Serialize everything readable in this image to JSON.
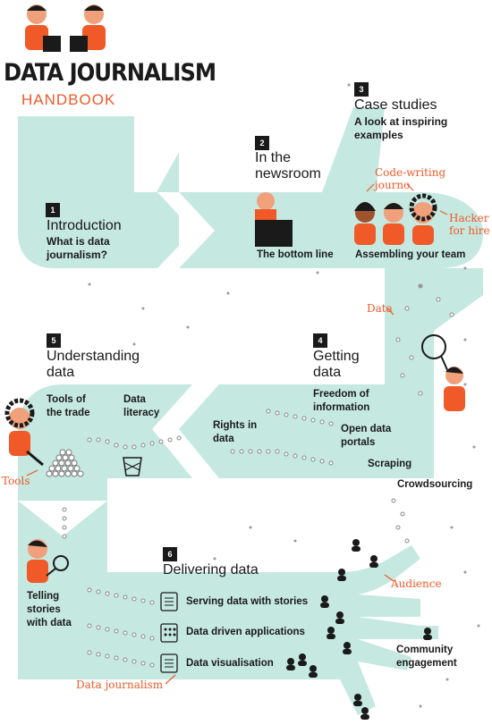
{
  "header": {
    "title": "DATA JOURNALISM",
    "subtitle": "HANDBOOK"
  },
  "chapters": [
    {
      "num": "1",
      "title": "Introduction",
      "subtitle": "What is data journalism?"
    },
    {
      "num": "2",
      "title": "In the newsroom",
      "subtitle": ""
    },
    {
      "num": "3",
      "title": "Case studies",
      "subtitle": "A look at inspiring examples"
    },
    {
      "num": "4",
      "title": "Getting data",
      "subtitle": ""
    },
    {
      "num": "5",
      "title": "Understanding data",
      "subtitle": ""
    },
    {
      "num": "6",
      "title": "Delivering data",
      "subtitle": ""
    }
  ],
  "labels": {
    "bottom_line": "The bottom line",
    "assembling": "Assembling your team",
    "freedom": "Freedom of information",
    "open_data": "Open data portals",
    "scraping": "Scraping",
    "crowdsourcing": "Crowdsourcing",
    "rights": "Rights in data",
    "tools_trade": "Tools of the trade",
    "literacy": "Data literacy",
    "telling": "Telling stories with data",
    "serving": "Serving data with stories",
    "applications": "Data driven applications",
    "visualisation": "Data visualisation",
    "community": "Community engagement"
  },
  "annotations": {
    "code_writing": "Code-writing journo",
    "hacker": "Hacker for hire",
    "data": "Data",
    "tools": "Tools",
    "audience": "Audience",
    "data_journalism": "Data journalism"
  },
  "colors": {
    "path": "#c5e8e0",
    "accent": "#ef5a28",
    "ink": "#1a1a1a"
  }
}
